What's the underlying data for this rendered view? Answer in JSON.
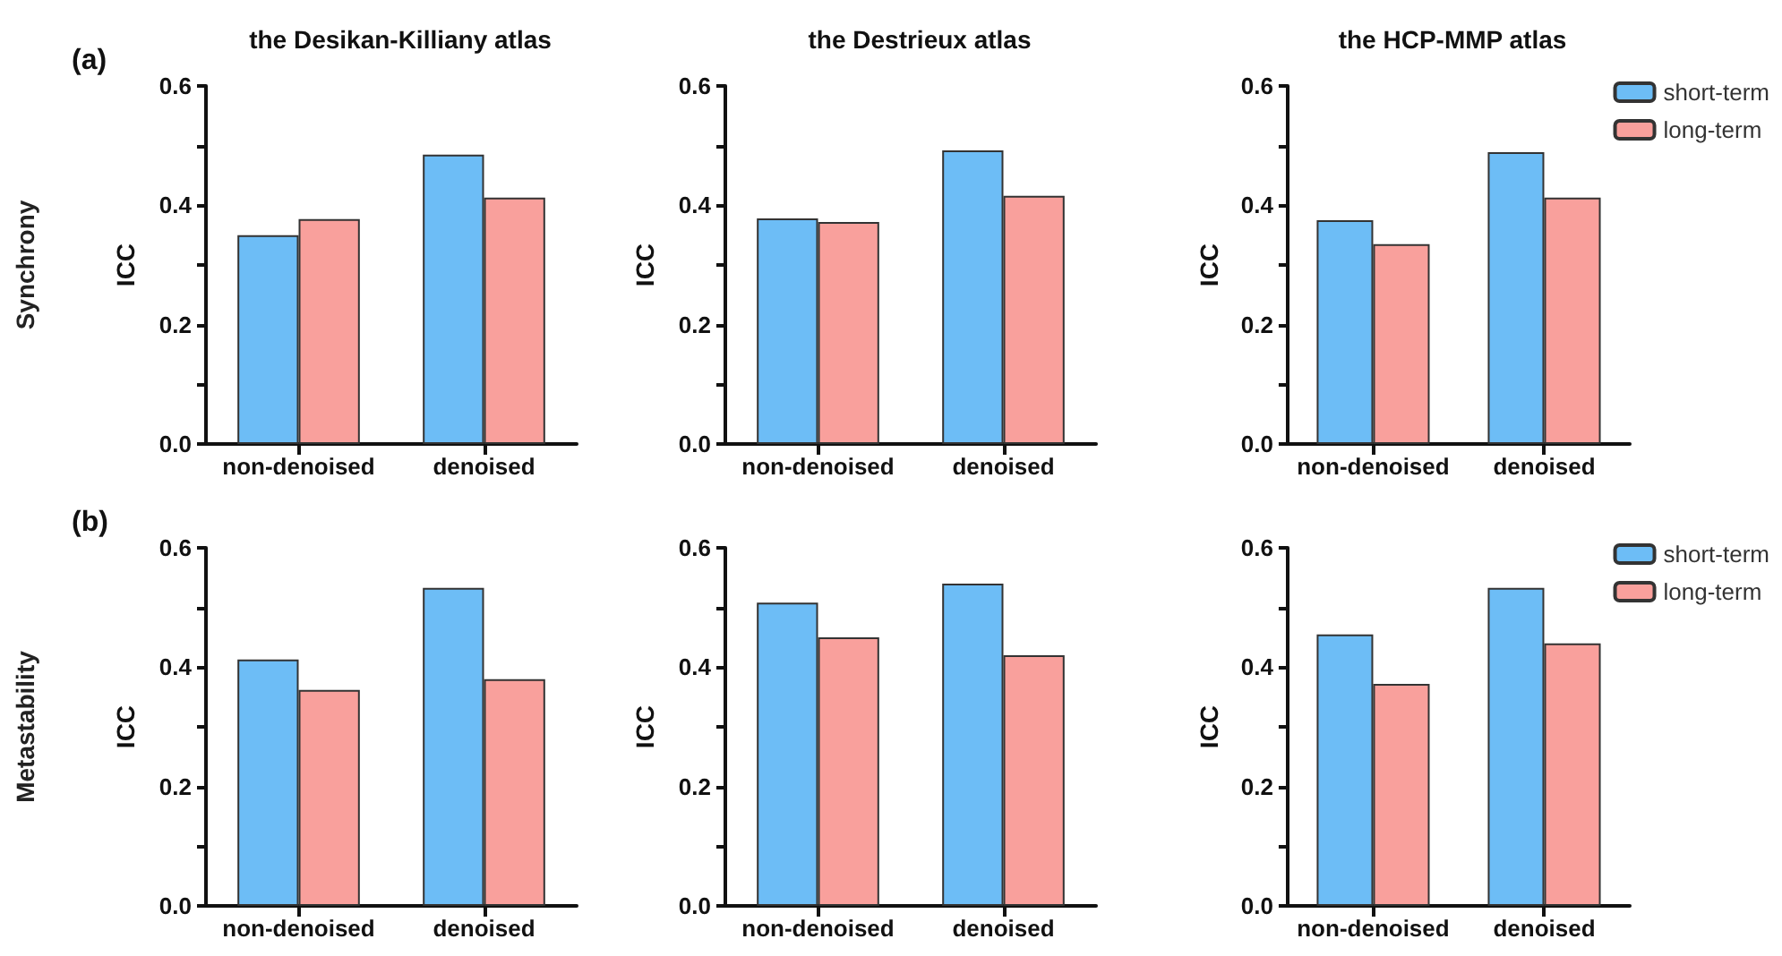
{
  "chart_data": [
    {
      "type": "bar",
      "title": "the Desikan-Killiany atlas",
      "ylabel": "ICC",
      "annotations": [
        "(a)",
        "Synchrony"
      ],
      "categories": [
        "non-denoised",
        "denoised"
      ],
      "series": [
        {
          "color": "#6dbdf6",
          "values": [
            0.35,
            0.485
          ]
        },
        {
          "color": "#f9a09c",
          "values": [
            0.377,
            0.413
          ]
        }
      ],
      "ylim": [
        0,
        0.6
      ],
      "yticks": [
        {
          "value": 0,
          "label": "0.0"
        },
        {
          "value": 0.1,
          "label": null
        },
        0.2,
        {
          "value": 0.3,
          "label": null
        },
        0.4,
        {
          "value": 0.5,
          "label": null
        },
        0.6
      ],
      "grid": false,
      "legend": false
    },
    {
      "type": "bar",
      "title": "the Destrieux atlas",
      "ylabel": "ICC",
      "categories": [
        "non-denoised",
        "denoised"
      ],
      "series": [
        {
          "color": "#6dbdf6",
          "values": [
            0.378,
            0.492
          ]
        },
        {
          "color": "#f9a09c",
          "values": [
            0.372,
            0.416
          ]
        }
      ],
      "ylim": [
        0,
        0.6
      ],
      "yticks": [
        {
          "value": 0,
          "label": "0.0"
        },
        {
          "value": 0.1,
          "label": null
        },
        0.2,
        {
          "value": 0.3,
          "label": null
        },
        0.4,
        {
          "value": 0.5,
          "label": null
        },
        0.6
      ],
      "grid": false,
      "legend": false
    },
    {
      "type": "bar",
      "title": "the HCP-MMP atlas",
      "ylabel": "ICC",
      "categories": [
        "non-denoised",
        "denoised"
      ],
      "series": [
        {
          "name": "short-term",
          "color": "#6dbdf6",
          "values": [
            0.375,
            0.489
          ]
        },
        {
          "name": "long-term",
          "color": "#f9a09c",
          "values": [
            0.335,
            0.413
          ]
        }
      ],
      "ylim": [
        0,
        0.6
      ],
      "yticks": [
        {
          "value": 0,
          "label": "0.0"
        },
        {
          "value": 0.1,
          "label": null
        },
        0.2,
        {
          "value": 0.3,
          "label": null
        },
        0.4,
        {
          "value": 0.5,
          "label": null
        },
        0.6
      ],
      "grid": false,
      "legend": "top right"
    },
    {
      "type": "bar",
      "ylabel": "ICC",
      "annotations": [
        "(b)",
        "Metastability"
      ],
      "categories": [
        "non-denoised",
        "denoised"
      ],
      "series": [
        {
          "color": "#6dbdf6",
          "values": [
            0.413,
            0.533
          ]
        },
        {
          "color": "#f9a09c",
          "values": [
            0.362,
            0.38
          ]
        }
      ],
      "ylim": [
        0,
        0.6
      ],
      "yticks": [
        {
          "value": 0,
          "label": "0.0"
        },
        {
          "value": 0.1,
          "label": null
        },
        0.2,
        {
          "value": 0.3,
          "label": null
        },
        0.4,
        {
          "value": 0.5,
          "label": null
        },
        0.6
      ],
      "grid": false,
      "legend": false
    },
    {
      "type": "bar",
      "ylabel": "ICC",
      "categories": [
        "non-denoised",
        "denoised"
      ],
      "series": [
        {
          "color": "#6dbdf6",
          "values": [
            0.508,
            0.54
          ]
        },
        {
          "color": "#f9a09c",
          "values": [
            0.45,
            0.42
          ]
        }
      ],
      "ylim": [
        0,
        0.6
      ],
      "yticks": [
        {
          "value": 0,
          "label": "0.0"
        },
        {
          "value": 0.1,
          "label": null
        },
        0.2,
        {
          "value": 0.3,
          "label": null
        },
        0.4,
        {
          "value": 0.5,
          "label": null
        },
        0.6
      ],
      "grid": false,
      "legend": false
    },
    {
      "type": "bar",
      "ylabel": "ICC",
      "categories": [
        "non-denoised",
        "denoised"
      ],
      "series": [
        {
          "name": "short-term",
          "color": "#6dbdf6",
          "values": [
            0.455,
            0.533
          ]
        },
        {
          "name": "long-term",
          "color": "#f9a09c",
          "values": [
            0.372,
            0.44
          ]
        }
      ],
      "ylim": [
        0,
        0.6
      ],
      "yticks": [
        {
          "value": 0,
          "label": "0.0"
        },
        {
          "value": 0.1,
          "label": null
        },
        0.2,
        {
          "value": 0.3,
          "label": null
        },
        0.4,
        {
          "value": 0.5,
          "label": null
        },
        0.6
      ],
      "grid": false,
      "legend": "top right"
    }
  ]
}
